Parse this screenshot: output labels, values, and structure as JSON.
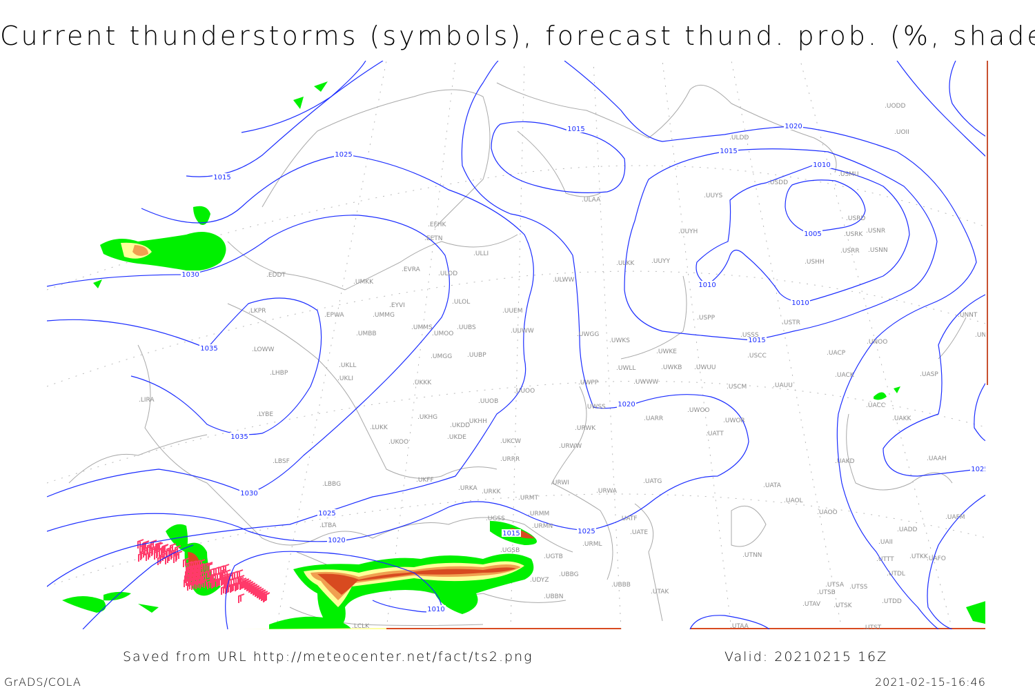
{
  "title": "Current thunderstorms (symbols), forecast thund. prob. (%, shaded)",
  "footer": {
    "source": "Saved from URL http://meteocenter.net/fact/ts2.png",
    "valid": "Valid: 20210215 16Z",
    "software": "GrADS/COLA",
    "timestamp": "2021-02-15-16:46"
  },
  "map": {
    "isobar_color": "#1a2cff",
    "coast_color": "#a8a8a8",
    "station_color": "#8c8c8c",
    "shading_colors": {
      "low": "#00f000",
      "medium": "#ffff99",
      "high": "#f0a050",
      "very_high": "#d84a20"
    },
    "thunderstorm_symbol_color": "#ff3a6a",
    "isobar_labels": [
      "1015",
      "1025",
      "1030",
      "1035",
      "1035",
      "1030",
      "1025",
      "1020",
      "1015",
      "1010",
      "1015",
      "1020",
      "1015",
      "1010",
      "1005",
      "1010",
      "1010",
      "1015",
      "1020",
      "1025",
      "1025"
    ],
    "stations": [
      "ULDD",
      "UODD",
      "UOII",
      "USMU",
      "USDD",
      "UUYS",
      "UUYH",
      "USRD",
      "USRK",
      "USNR",
      "USRR",
      "USNN",
      "USHH",
      "UUYY",
      "ULKK",
      "ULAA",
      "EFHK",
      "EETN",
      "ULLI",
      "ULWW",
      "EVRA",
      "ULOD",
      "UMKK",
      "EDDT",
      "EYVI",
      "ULOL",
      "UUEM",
      "LKPR",
      "EPWA",
      "UMMG",
      "UMMS",
      "UMOO",
      "UUBS",
      "UUWW",
      "UMBB",
      "USPP",
      "USTR",
      "USSS",
      "UWGG",
      "UWKS",
      "UNOO",
      "UNNT",
      "UNBB",
      "LOWW",
      "UWKE",
      "UWKB",
      "UWUU",
      "USCC",
      "UACP",
      "UKLL",
      "UUBP",
      "UMGG",
      "LHBP",
      "UKLI",
      "UWLL",
      "UWWW",
      "UACK",
      "UASP",
      "UKKK",
      "UWPP",
      "USCM",
      "UAUU",
      "UUOO",
      "LIRA",
      "UUOB",
      "UWSS",
      "UARR",
      "UWOO",
      "UWOR",
      "UACC",
      "UAKK",
      "LYBE",
      "UKHG",
      "UKDD",
      "UKHH",
      "LUKK",
      "URWK",
      "UATT",
      "UKDE",
      "UKOO",
      "UKCW",
      "URWW",
      "LBSF",
      "URRR",
      "UAKD",
      "UAAH",
      "LBBG",
      "UKFF",
      "URKA",
      "URKK",
      "URWI",
      "UATG",
      "UATA",
      "URMT",
      "URWA",
      "UAOL",
      "UAOO",
      "UADD",
      "UAFM",
      "URMM",
      "UGSS",
      "URMN",
      "UATF",
      "UATE",
      "LTBA",
      "UGSB",
      "URML",
      "UAII",
      "UTNN",
      "UGTB",
      "UTTT",
      "UTKK",
      "UAFO",
      "UBBG",
      "UBBB",
      "UTDL",
      "UDYZ",
      "UTSA",
      "UTSS",
      "UTAK",
      "UTSB",
      "UBBN",
      "UTDD",
      "UTAV",
      "UTSK",
      "LCLK",
      "UTAA",
      "UTST"
    ]
  }
}
